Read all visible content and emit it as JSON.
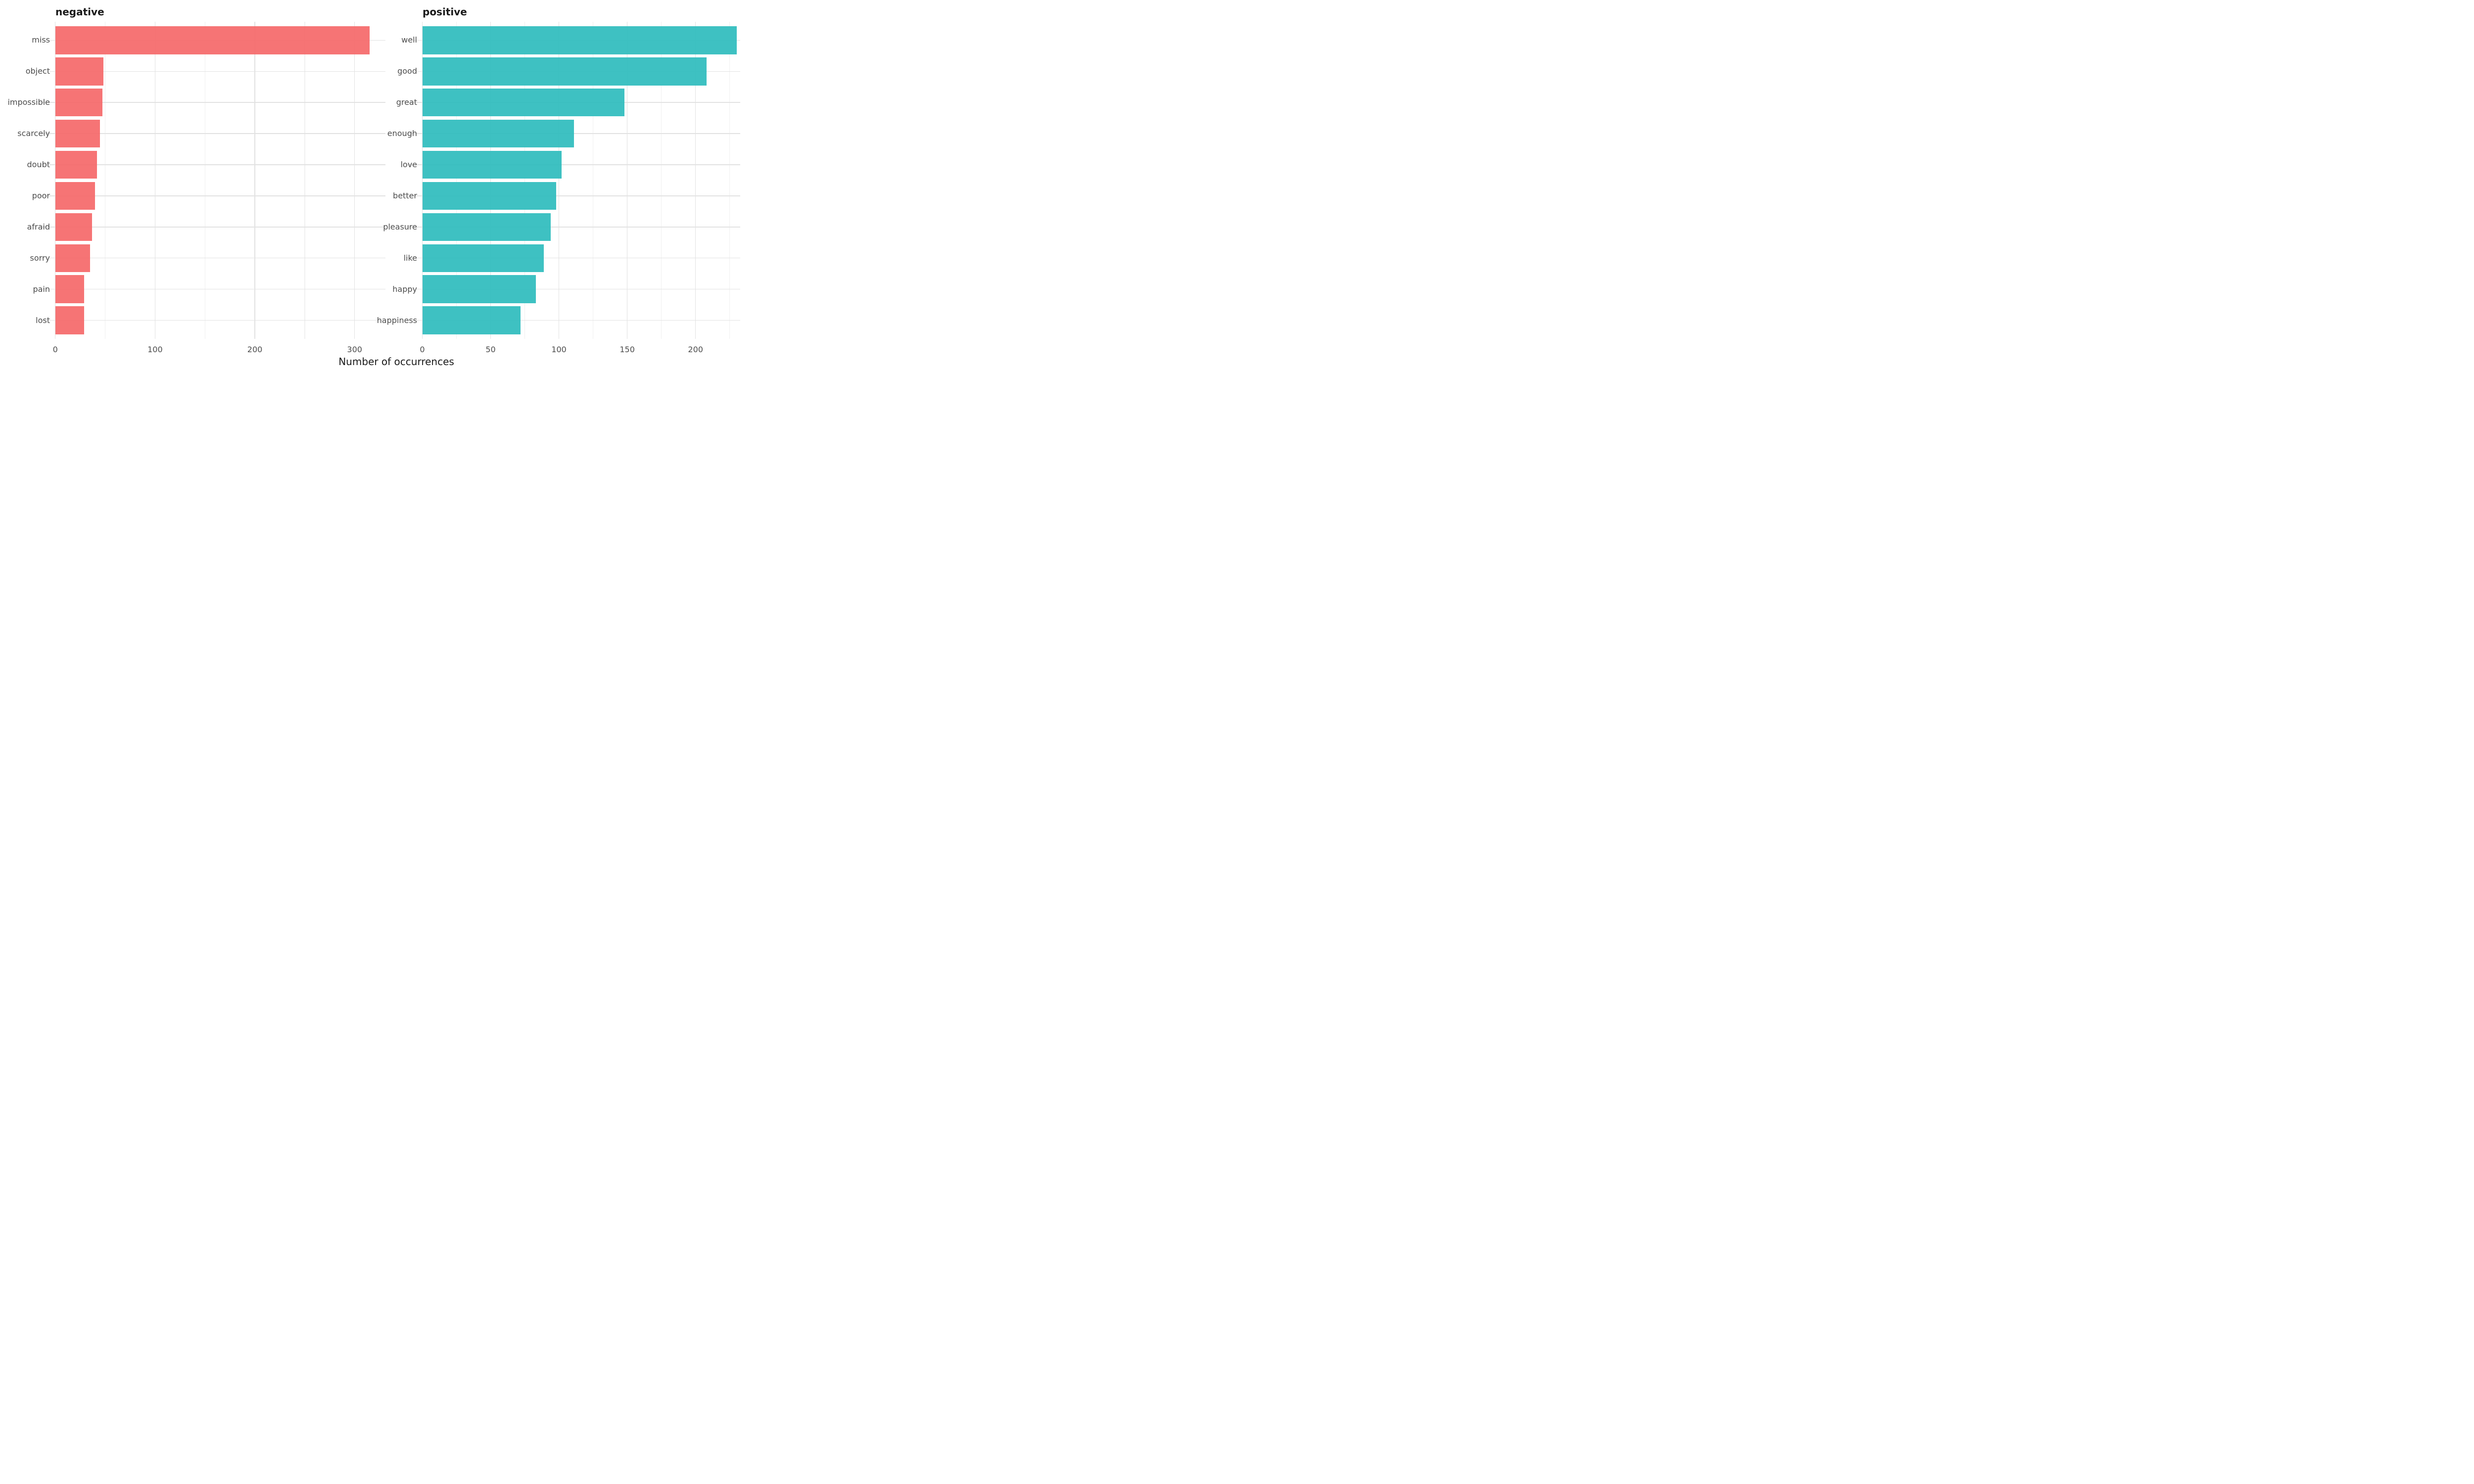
{
  "figure": {
    "background": "#ffffff"
  },
  "chart_data": {
    "type": "bar",
    "orientation": "horizontal",
    "xlabel": "Number of occurrences",
    "grid": "on",
    "legend": "none",
    "facets": [
      {
        "title": "negative",
        "bar_color": "#f5696b",
        "categories": [
          "miss",
          "object",
          "impossible",
          "scarcely",
          "doubt",
          "poor",
          "afraid",
          "sorry",
          "pain",
          "lost"
        ],
        "values": [
          315,
          48,
          47,
          45,
          42,
          40,
          37,
          35,
          29,
          29
        ],
        "x_ticks": [
          0,
          100,
          200,
          300
        ],
        "x_minor_ticks": [
          50,
          150,
          250
        ],
        "xlim": [
          0,
          320
        ]
      },
      {
        "title": "positive",
        "bar_color": "#2fbcbd",
        "categories": [
          "well",
          "good",
          "great",
          "enough",
          "love",
          "better",
          "pleasure",
          "like",
          "happy",
          "happiness"
        ],
        "values": [
          230,
          208,
          148,
          111,
          102,
          98,
          94,
          89,
          83,
          72
        ],
        "x_ticks": [
          0,
          50,
          100,
          150,
          200
        ],
        "x_minor_ticks": [
          25,
          75,
          125,
          175,
          225
        ],
        "xlim": [
          0,
          232
        ]
      }
    ]
  },
  "colors": {
    "grid_major": "#e2e2e2",
    "grid_minor": "#f0f0f0",
    "axis_text": "#4d4d4d",
    "title_text": "#1a1a1a"
  }
}
